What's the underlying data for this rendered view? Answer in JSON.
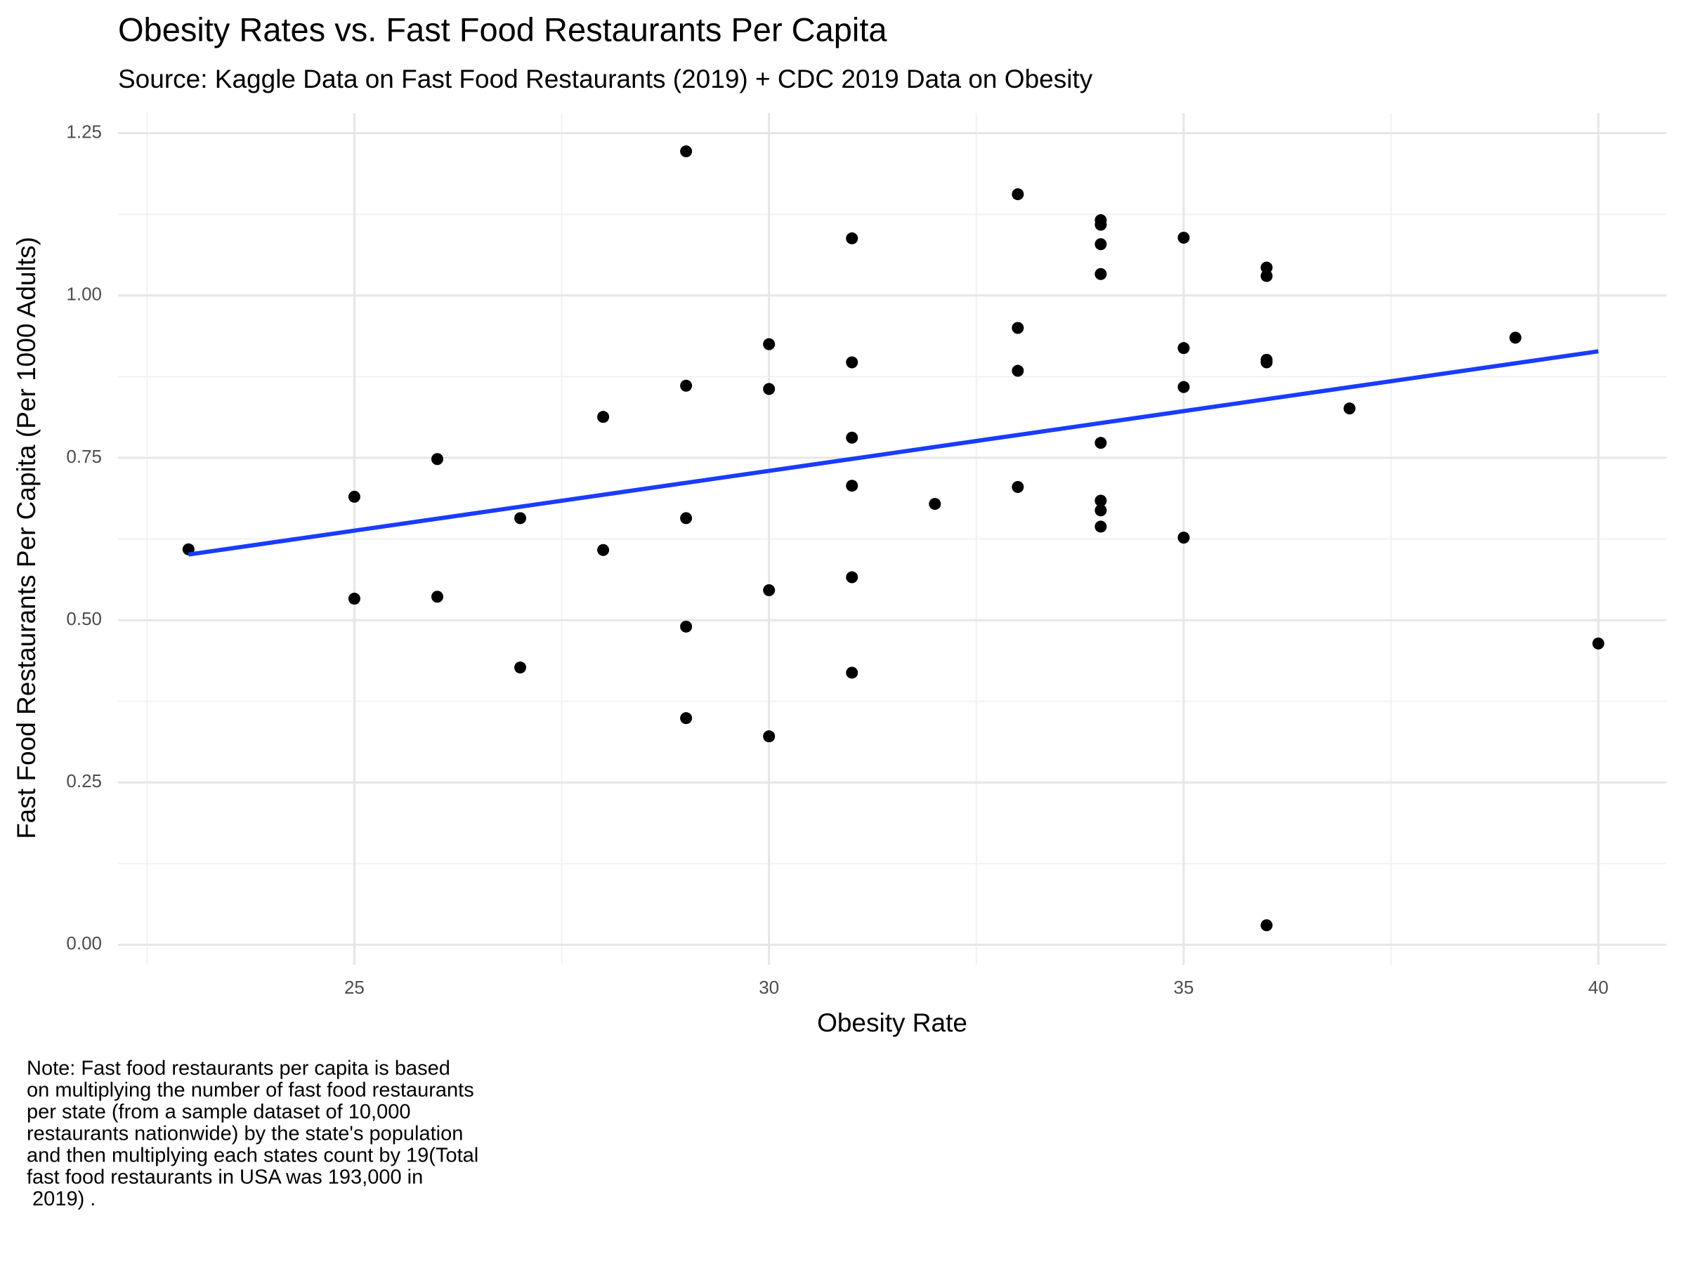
{
  "chart_data": {
    "type": "scatter",
    "title": "Obesity Rates vs. Fast Food Restaurants Per Capita",
    "subtitle": "Source: Kaggle Data on Fast Food Restaurants (2019) + CDC 2019 Data on Obesity",
    "x_label": "Obesity Rate",
    "y_label": "Fast Food Restaurants Per Capita (Per 1000 Adults)",
    "x": [
      23,
      25,
      25,
      26,
      26,
      27,
      27,
      28,
      28,
      29,
      29,
      29,
      29,
      29,
      30,
      30,
      30,
      30,
      31,
      31,
      31,
      31,
      31,
      31,
      32,
      33,
      33,
      33,
      33,
      34,
      34,
      34,
      34,
      34,
      34,
      34,
      34,
      35,
      35,
      35,
      35,
      36,
      36,
      36,
      36,
      36,
      37,
      39,
      40
    ],
    "values": [
      0.609,
      0.69,
      0.533,
      0.748,
      0.536,
      0.657,
      0.427,
      0.813,
      0.608,
      1.222,
      0.861,
      0.657,
      0.49,
      0.349,
      0.925,
      0.856,
      0.546,
      0.321,
      1.088,
      0.897,
      0.781,
      0.707,
      0.566,
      0.419,
      0.679,
      1.156,
      0.95,
      0.884,
      0.705,
      1.116,
      1.109,
      1.079,
      1.033,
      0.773,
      0.684,
      0.669,
      0.644,
      1.089,
      0.919,
      0.859,
      0.627,
      1.043,
      1.03,
      0.901,
      0.897,
      0.03,
      0.826,
      0.935,
      0.464
    ],
    "color": "#000000",
    "trend_line": {
      "x": [
        23,
        40
      ],
      "values": [
        0.601,
        0.914
      ],
      "color": "#1a3cff"
    },
    "xlim": [
      22.15,
      40.82
    ],
    "ylim": [
      -0.031,
      1.281
    ],
    "xticks": [
      25,
      30,
      35,
      40
    ],
    "yticks": [
      {
        "value": 0,
        "label": "0.00"
      },
      {
        "value": 0.25,
        "label": "0.25"
      },
      {
        "value": 0.5,
        "label": "0.50"
      },
      {
        "value": 0.75,
        "label": "0.75"
      },
      {
        "value": 1,
        "label": "1.00"
      },
      {
        "value": 1.25,
        "label": "1.25"
      }
    ],
    "x_minor_gridlines": [
      22.5,
      27.5,
      32.5,
      37.5
    ],
    "y_minor_gridlines": [
      0.125,
      0.375,
      0.625,
      0.875,
      1.125
    ],
    "grid": true,
    "note_lines": [
      "Note: Fast food restaurants per capita is based",
      "on multiplying the number of fast food restaurants",
      "per state (from a sample dataset of 10,000",
      "restaurants nationwide) by the state's population",
      "and then multiplying each states count by 19(Total",
      "fast food restaurants in USA was 193,000 in",
      " 2019) ."
    ]
  }
}
